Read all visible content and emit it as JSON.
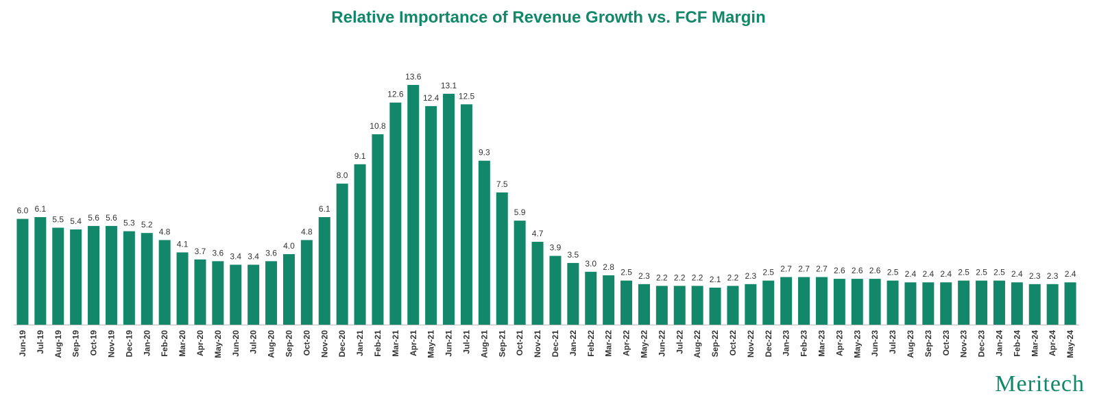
{
  "title": "Relative Importance of Revenue Growth vs. FCF Margin",
  "logo_text": "Meritech",
  "colors": {
    "bar": "#12876a",
    "title": "#12876a",
    "axis_line": "#bbbbbb",
    "label": "#333333"
  },
  "chart_data": {
    "type": "bar",
    "title": "Relative Importance of Revenue Growth vs. FCF Margin",
    "xlabel": "",
    "ylabel": "",
    "grid": false,
    "legend": "none",
    "ylim": [
      0,
      13.6
    ],
    "categories": [
      "Jun-19",
      "Jul-19",
      "Aug-19",
      "Sep-19",
      "Oct-19",
      "Nov-19",
      "Dec-19",
      "Jan-20",
      "Feb-20",
      "Mar-20",
      "Apr-20",
      "May-20",
      "Jun-20",
      "Jul-20",
      "Aug-20",
      "Sep-20",
      "Oct-20",
      "Nov-20",
      "Dec-20",
      "Jan-21",
      "Feb-21",
      "Mar-21",
      "Apr-21",
      "May-21",
      "Jun-21",
      "Jul-21",
      "Aug-21",
      "Sep-21",
      "Oct-21",
      "Nov-21",
      "Dec-21",
      "Jan-22",
      "Feb-22",
      "Mar-22",
      "Apr-22",
      "May-22",
      "Jun-22",
      "Jul-22",
      "Aug-22",
      "Sep-22",
      "Oct-22",
      "Nov-22",
      "Dec-22",
      "Jan-23",
      "Feb-23",
      "Mar-23",
      "Apr-23",
      "May-23",
      "Jun-23",
      "Jul-23",
      "Aug-23",
      "Sep-23",
      "Oct-23",
      "Nov-23",
      "Dec-23",
      "Jan-24",
      "Feb-24",
      "Mar-24",
      "Apr-24",
      "May-24"
    ],
    "values": [
      6.0,
      6.1,
      5.5,
      5.4,
      5.6,
      5.6,
      5.3,
      5.2,
      4.8,
      4.1,
      3.7,
      3.6,
      3.4,
      3.4,
      3.6,
      4.0,
      4.8,
      6.1,
      8.0,
      9.1,
      10.8,
      12.6,
      13.6,
      12.4,
      13.1,
      12.5,
      9.3,
      7.5,
      5.9,
      4.7,
      3.9,
      3.5,
      3.0,
      2.8,
      2.5,
      2.3,
      2.2,
      2.2,
      2.2,
      2.1,
      2.2,
      2.3,
      2.5,
      2.7,
      2.7,
      2.7,
      2.6,
      2.6,
      2.6,
      2.5,
      2.4,
      2.4,
      2.4,
      2.5,
      2.5,
      2.5,
      2.4,
      2.3,
      2.3,
      2.4
    ],
    "data_labels": [
      "6.0",
      "6.1",
      "5.5",
      "5.4",
      "5.6",
      "5.6",
      "5.3",
      "5.2",
      "4.8",
      "4.1",
      "3.7",
      "3.6",
      "3.4",
      "3.4",
      "3.6",
      "4.0",
      "4.8",
      "6.1",
      "8.0",
      "9.1",
      "10.8",
      "12.6",
      "13.6",
      "12.4",
      "13.1",
      "12.5",
      "9.3",
      "7.5",
      "5.9",
      "4.7",
      "3.9",
      "3.5",
      "3.0",
      "2.8",
      "2.5",
      "2.3",
      "2.2",
      "2.2",
      "2.2",
      "2.1",
      "2.2",
      "2.3",
      "2.5",
      "2.7",
      "2.7",
      "2.7",
      "2.6",
      "2.6",
      "2.6",
      "2.5",
      "2.4",
      "2.4",
      "2.4",
      "2.5",
      "2.5",
      "2.5",
      "2.4",
      "2.3",
      "2.3",
      "2.4"
    ]
  }
}
